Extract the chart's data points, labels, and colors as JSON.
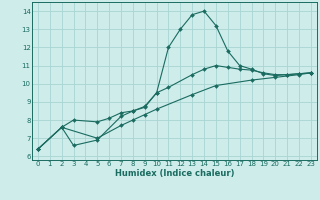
{
  "xlabel": "Humidex (Indice chaleur)",
  "bg_color": "#cdecea",
  "grid_color": "#a8d5d1",
  "line_color": "#1a6b60",
  "xlim": [
    -0.5,
    23.5
  ],
  "ylim": [
    5.8,
    14.5
  ],
  "xticks": [
    0,
    1,
    2,
    3,
    4,
    5,
    6,
    7,
    8,
    9,
    10,
    11,
    12,
    13,
    14,
    15,
    16,
    17,
    18,
    19,
    20,
    21,
    22,
    23
  ],
  "yticks": [
    6,
    7,
    8,
    9,
    10,
    11,
    12,
    13,
    14
  ],
  "lines": [
    {
      "x": [
        0,
        2,
        3,
        5,
        7,
        8,
        9,
        10,
        11,
        12,
        13,
        14,
        15,
        16,
        17,
        18,
        19,
        20,
        21,
        22,
        23
      ],
      "y": [
        6.4,
        7.6,
        6.6,
        6.9,
        8.2,
        8.5,
        8.7,
        9.5,
        12.0,
        13.0,
        13.8,
        14.0,
        13.2,
        11.8,
        11.0,
        10.8,
        10.55,
        10.45,
        10.5,
        10.55,
        10.6
      ]
    },
    {
      "x": [
        0,
        2,
        3,
        5,
        6,
        7,
        8,
        9,
        10,
        11,
        13,
        14,
        15,
        16,
        17,
        18,
        19,
        20,
        21,
        22,
        23
      ],
      "y": [
        6.4,
        7.6,
        8.0,
        7.9,
        8.1,
        8.4,
        8.5,
        8.75,
        9.5,
        9.8,
        10.5,
        10.8,
        11.0,
        10.9,
        10.8,
        10.75,
        10.6,
        10.5,
        10.5,
        10.55,
        10.6
      ]
    },
    {
      "x": [
        0,
        2,
        5,
        7,
        8,
        9,
        10,
        13,
        15,
        18,
        20,
        22,
        23
      ],
      "y": [
        6.4,
        7.6,
        7.0,
        7.7,
        8.0,
        8.3,
        8.6,
        9.4,
        9.9,
        10.2,
        10.35,
        10.5,
        10.6
      ]
    }
  ]
}
